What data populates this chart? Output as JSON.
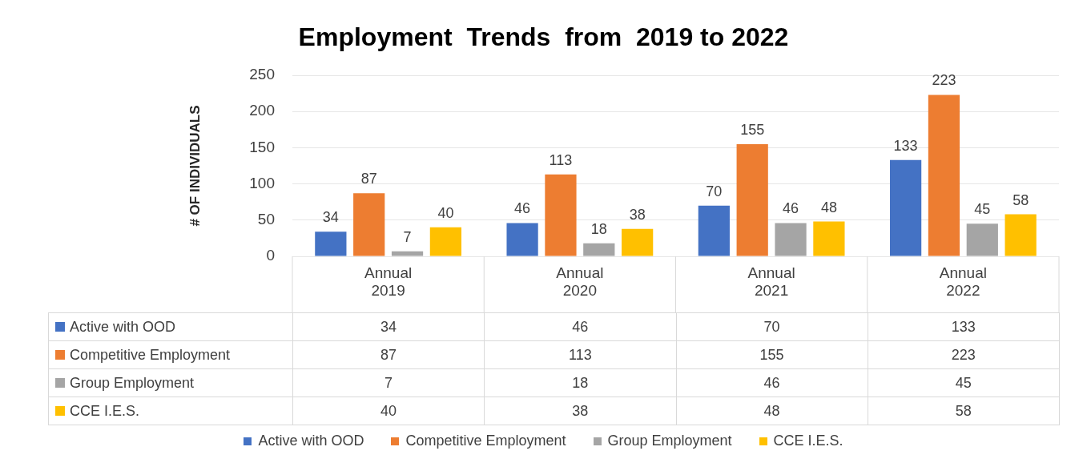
{
  "chart_data": {
    "type": "bar",
    "title": "Employment  Trends  from  2019 to 2022",
    "ylabel": "# OF INDIVIDUALS",
    "categories": [
      "Annual 2019",
      "Annual 2020",
      "Annual 2021",
      "Annual 2022"
    ],
    "series": [
      {
        "name": "Active with OOD",
        "color": "#4472c4",
        "values": [
          34,
          46,
          70,
          133
        ]
      },
      {
        "name": "Competitive Employment",
        "color": "#ed7d31",
        "values": [
          87,
          113,
          155,
          223
        ]
      },
      {
        "name": "Group Employment",
        "color": "#a5a5a5",
        "values": [
          7,
          18,
          46,
          45
        ]
      },
      {
        "name": "CCE I.E.S.",
        "color": "#ffc000",
        "values": [
          40,
          38,
          48,
          58
        ]
      }
    ],
    "annotations": [
      "34",
      "87",
      "7",
      "40",
      "46",
      "113",
      "18",
      "38",
      "70",
      "155",
      "46",
      "48",
      "133",
      "223",
      "45",
      "58"
    ],
    "ylim": [
      0,
      250
    ],
    "yticks": [
      0,
      50,
      100,
      150,
      200,
      250
    ],
    "grid": "y",
    "legend": "bottom",
    "data_labels": true
  }
}
